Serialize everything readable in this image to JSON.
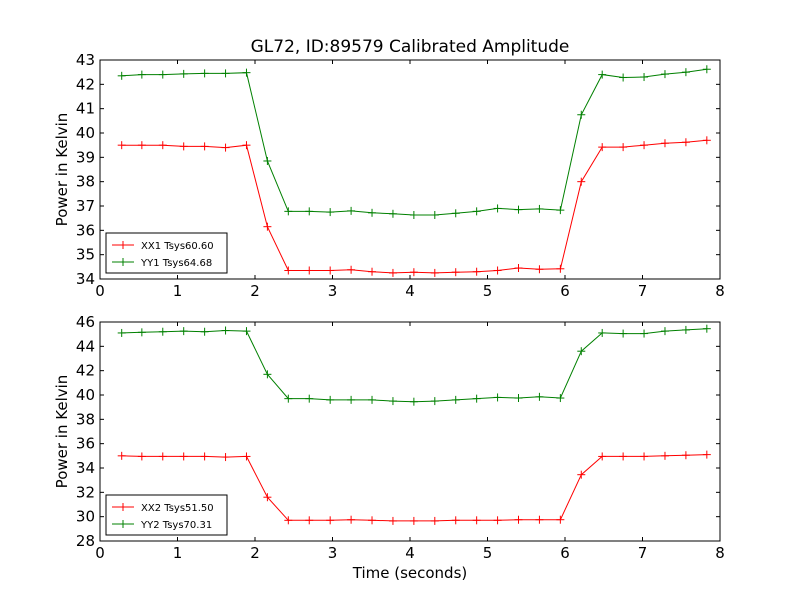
{
  "title": "GL72, ID:89579 Calibrated Amplitude",
  "xlabel": "Time (seconds)",
  "chart_data": [
    {
      "type": "line",
      "title": "GL72, ID:89579 Calibrated Amplitude",
      "xlabel": "",
      "ylabel": "Power in Kelvin",
      "xlim": [
        0,
        8
      ],
      "ylim": [
        34,
        43
      ],
      "xticks": [
        "0",
        "1",
        "2",
        "3",
        "4",
        "5",
        "6",
        "7",
        "8"
      ],
      "yticks": [
        "34",
        "35",
        "36",
        "37",
        "38",
        "39",
        "40",
        "41",
        "42",
        "43"
      ],
      "grid": false,
      "legend_position": "lower-left",
      "x": [
        0.28,
        0.54,
        0.81,
        1.08,
        1.35,
        1.62,
        1.89,
        2.16,
        2.43,
        2.7,
        2.97,
        3.24,
        3.51,
        3.78,
        4.05,
        4.32,
        4.59,
        4.86,
        5.13,
        5.4,
        5.67,
        5.94,
        6.21,
        6.48,
        6.75,
        7.02,
        7.29,
        7.56,
        7.83
      ],
      "series": [
        {
          "name": "XX1 Tsys60.60",
          "color": "#ff0000",
          "values": [
            39.5,
            39.5,
            39.5,
            39.45,
            39.45,
            39.4,
            39.5,
            36.15,
            34.35,
            34.35,
            34.35,
            34.38,
            34.3,
            34.25,
            34.28,
            34.25,
            34.28,
            34.3,
            34.35,
            34.45,
            34.4,
            34.42,
            38.0,
            39.42,
            39.42,
            39.5,
            39.58,
            39.62,
            39.7
          ]
        },
        {
          "name": "YY1 Tsys64.68",
          "color": "#008000",
          "values": [
            42.35,
            42.4,
            42.4,
            42.43,
            42.45,
            42.45,
            42.48,
            38.85,
            36.78,
            36.78,
            36.75,
            36.8,
            36.72,
            36.68,
            36.63,
            36.63,
            36.7,
            36.78,
            36.9,
            36.85,
            36.88,
            36.83,
            40.75,
            42.4,
            42.28,
            42.3,
            42.42,
            42.5,
            42.62
          ]
        }
      ]
    },
    {
      "type": "line",
      "title": "",
      "xlabel": "Time (seconds)",
      "ylabel": "Power in Kelvin",
      "xlim": [
        0,
        8
      ],
      "ylim": [
        28,
        46
      ],
      "xticks": [
        "0",
        "1",
        "2",
        "3",
        "4",
        "5",
        "6",
        "7",
        "8"
      ],
      "yticks": [
        "28",
        "30",
        "32",
        "34",
        "36",
        "38",
        "40",
        "42",
        "44",
        "46"
      ],
      "grid": false,
      "legend_position": "lower-left",
      "x": [
        0.28,
        0.54,
        0.81,
        1.08,
        1.35,
        1.62,
        1.89,
        2.16,
        2.43,
        2.7,
        2.97,
        3.24,
        3.51,
        3.78,
        4.05,
        4.32,
        4.59,
        4.86,
        5.13,
        5.4,
        5.67,
        5.94,
        6.21,
        6.48,
        6.75,
        7.02,
        7.29,
        7.56,
        7.83
      ],
      "series": [
        {
          "name": "XX2 Tsys51.50",
          "color": "#ff0000",
          "values": [
            35.0,
            34.95,
            34.95,
            34.95,
            34.95,
            34.9,
            34.95,
            31.6,
            29.7,
            29.7,
            29.7,
            29.75,
            29.7,
            29.65,
            29.65,
            29.65,
            29.7,
            29.7,
            29.7,
            29.75,
            29.75,
            29.75,
            33.45,
            34.95,
            34.95,
            34.95,
            35.0,
            35.05,
            35.1
          ]
        },
        {
          "name": "YY2 Tsys70.31",
          "color": "#008000",
          "values": [
            45.1,
            45.15,
            45.2,
            45.25,
            45.2,
            45.3,
            45.25,
            41.7,
            39.7,
            39.7,
            39.6,
            39.6,
            39.6,
            39.5,
            39.45,
            39.5,
            39.6,
            39.7,
            39.8,
            39.75,
            39.85,
            39.75,
            43.6,
            45.1,
            45.05,
            45.05,
            45.25,
            45.35,
            45.45
          ]
        }
      ]
    }
  ]
}
